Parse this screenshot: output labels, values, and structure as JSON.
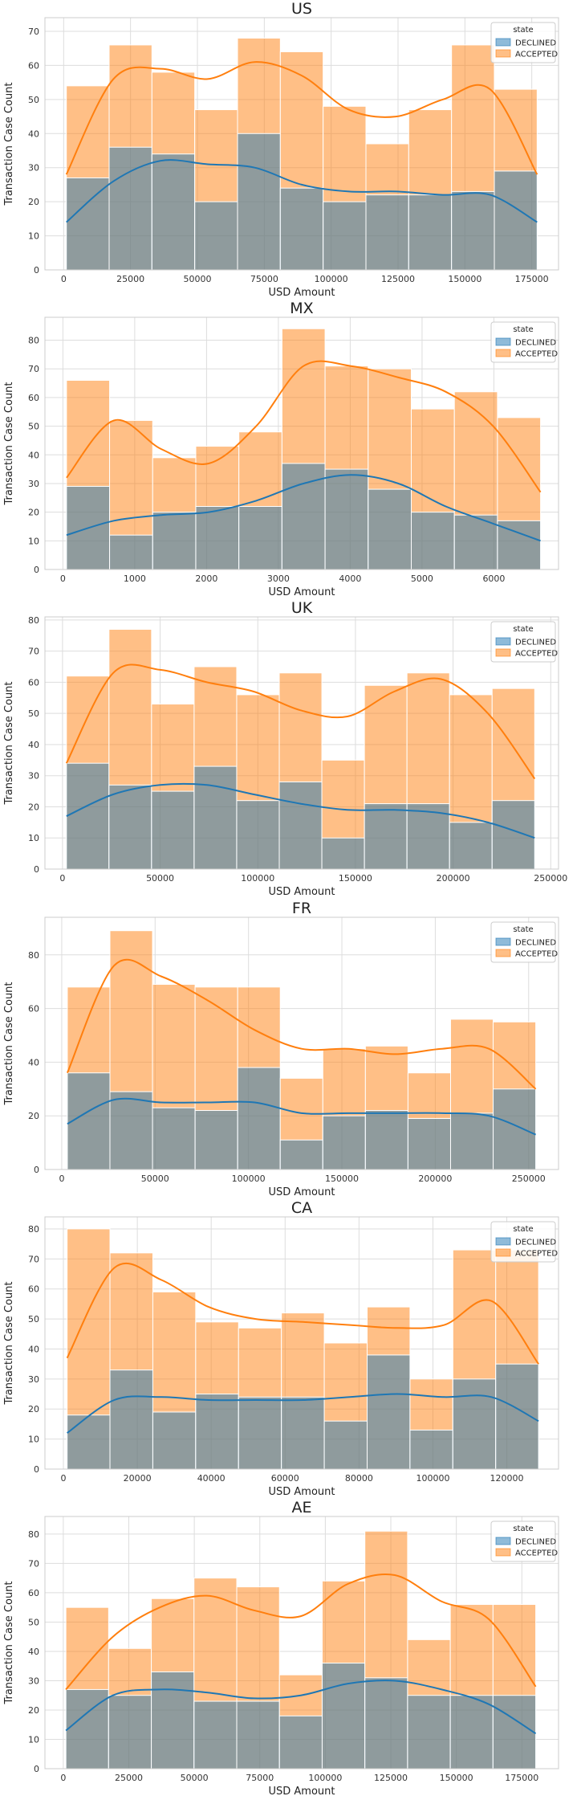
{
  "chart_data": [
    {
      "type": "bar",
      "title": "US",
      "xlabel": "USD Amount",
      "ylabel": "Transaction Case Count",
      "legend": {
        "title": "state",
        "placement": "top-right",
        "entries": [
          "DECLINED",
          "ACCEPTED"
        ]
      },
      "grid": true,
      "stacked": false,
      "xlim": [
        -7000,
        185000
      ],
      "ylim": [
        0,
        74
      ],
      "xticks": [
        0,
        25000,
        50000,
        75000,
        100000,
        125000,
        150000,
        175000
      ],
      "xtick_labels": [
        "0",
        "25000",
        "50000",
        "75000",
        "100000",
        "125000",
        "150000",
        "175000"
      ],
      "yticks": [
        0,
        10,
        20,
        30,
        40,
        50,
        60,
        70
      ],
      "bin_edges": [
        1000,
        17000,
        33000,
        49000,
        65000,
        81000,
        97000,
        113000,
        129000,
        145000,
        161000,
        177000
      ],
      "series": [
        {
          "name": "DECLINED",
          "color": "#1f77b4",
          "values": [
            27,
            36,
            34,
            20,
            40,
            24,
            20,
            22,
            22,
            23,
            29
          ],
          "kde_y": [
            14,
            26,
            32,
            31,
            30,
            25,
            23,
            23,
            22,
            22,
            14
          ]
        },
        {
          "name": "ACCEPTED",
          "color": "#ff7f0e",
          "values": [
            54,
            66,
            58,
            47,
            68,
            64,
            48,
            37,
            47,
            66,
            53
          ],
          "kde_y": [
            28,
            56,
            59,
            56,
            61,
            57,
            47,
            45,
            50,
            53,
            28
          ]
        }
      ]
    },
    {
      "type": "bar",
      "title": "MX",
      "xlabel": "USD Amount",
      "ylabel": "Transaction Case Count",
      "legend": {
        "title": "state",
        "placement": "top-right",
        "entries": [
          "DECLINED",
          "ACCEPTED"
        ]
      },
      "grid": true,
      "stacked": false,
      "xlim": [
        -250,
        6900
      ],
      "ylim": [
        0,
        88
      ],
      "xticks": [
        0,
        1000,
        2000,
        3000,
        4000,
        5000,
        6000
      ],
      "xtick_labels": [
        "0",
        "1000",
        "2000",
        "3000",
        "4000",
        "5000",
        "6000"
      ],
      "yticks": [
        0,
        10,
        20,
        30,
        40,
        50,
        60,
        70,
        80
      ],
      "bin_edges": [
        50,
        650,
        1250,
        1850,
        2450,
        3050,
        3650,
        4250,
        4850,
        5450,
        6050,
        6650
      ],
      "series": [
        {
          "name": "DECLINED",
          "color": "#1f77b4",
          "values": [
            29,
            12,
            20,
            22,
            22,
            37,
            35,
            28,
            20,
            19,
            17
          ],
          "kde_y": [
            12,
            17,
            19,
            20,
            24,
            30,
            33,
            30,
            22,
            16,
            10
          ]
        },
        {
          "name": "ACCEPTED",
          "color": "#ff7f0e",
          "values": [
            66,
            52,
            39,
            43,
            48,
            84,
            71,
            70,
            56,
            62,
            53
          ],
          "kde_y": [
            32,
            52,
            42,
            37,
            50,
            71,
            71,
            67,
            62,
            50,
            27
          ]
        }
      ]
    },
    {
      "type": "bar",
      "title": "UK",
      "xlabel": "USD Amount",
      "ylabel": "Transaction Case Count",
      "legend": {
        "title": "state",
        "placement": "top-right",
        "entries": [
          "DECLINED",
          "ACCEPTED"
        ]
      },
      "grid": true,
      "stacked": false,
      "xlim": [
        -9000,
        254000
      ],
      "ylim": [
        0,
        81
      ],
      "xticks": [
        0,
        50000,
        100000,
        150000,
        200000,
        250000
      ],
      "xtick_labels": [
        "0",
        "50000",
        "100000",
        "150000",
        "200000",
        "250000"
      ],
      "yticks": [
        0,
        10,
        20,
        30,
        40,
        50,
        60,
        70,
        80
      ],
      "bin_edges": [
        2000,
        23800,
        45600,
        67400,
        89200,
        111000,
        132800,
        154600,
        176400,
        198200,
        220000,
        241800
      ],
      "series": [
        {
          "name": "DECLINED",
          "color": "#1f77b4",
          "values": [
            34,
            27,
            25,
            33,
            22,
            28,
            10,
            21,
            21,
            15,
            22
          ],
          "kde_y": [
            17,
            24,
            27,
            27,
            24,
            21,
            19,
            19,
            18,
            15,
            10
          ]
        },
        {
          "name": "ACCEPTED",
          "color": "#ff7f0e",
          "values": [
            62,
            77,
            53,
            65,
            56,
            63,
            35,
            59,
            63,
            56,
            58
          ],
          "kde_y": [
            34,
            63,
            64,
            60,
            57,
            51,
            49,
            57,
            61,
            50,
            29
          ]
        }
      ]
    },
    {
      "type": "bar",
      "title": "FR",
      "xlabel": "USD Amount",
      "ylabel": "Transaction Case Count",
      "legend": {
        "title": "state",
        "placement": "top-right",
        "entries": [
          "DECLINED",
          "ACCEPTED"
        ]
      },
      "grid": true,
      "stacked": false,
      "xlim": [
        -9000,
        266000
      ],
      "ylim": [
        0,
        94
      ],
      "xticks": [
        0,
        50000,
        100000,
        150000,
        200000,
        250000
      ],
      "xtick_labels": [
        "0",
        "50000",
        "100000",
        "150000",
        "200000",
        "250000"
      ],
      "yticks": [
        0,
        20,
        40,
        60,
        80
      ],
      "bin_edges": [
        3000,
        25800,
        48600,
        71400,
        94200,
        117000,
        139800,
        162600,
        185400,
        208200,
        231000,
        253800
      ],
      "series": [
        {
          "name": "DECLINED",
          "color": "#1f77b4",
          "values": [
            36,
            29,
            23,
            22,
            38,
            11,
            20,
            22,
            19,
            21,
            30
          ],
          "kde_y": [
            17,
            26,
            25,
            25,
            25,
            21,
            21,
            21,
            21,
            20,
            13
          ]
        },
        {
          "name": "ACCEPTED",
          "color": "#ff7f0e",
          "values": [
            68,
            89,
            69,
            68,
            68,
            34,
            45,
            46,
            36,
            56,
            55
          ],
          "kde_y": [
            36,
            76,
            72,
            63,
            52,
            45,
            45,
            43,
            45,
            45,
            30
          ]
        }
      ]
    },
    {
      "type": "bar",
      "title": "CA",
      "xlabel": "USD Amount",
      "ylabel": "Transaction Case Count",
      "legend": {
        "title": "state",
        "placement": "top-right",
        "entries": [
          "DECLINED",
          "ACCEPTED"
        ]
      },
      "grid": true,
      "stacked": false,
      "xlim": [
        -5000,
        134000
      ],
      "ylim": [
        0,
        84
      ],
      "xticks": [
        0,
        20000,
        40000,
        60000,
        80000,
        100000,
        120000
      ],
      "xtick_labels": [
        "0",
        "20000",
        "40000",
        "60000",
        "80000",
        "100000",
        "120000"
      ],
      "yticks": [
        0,
        10,
        20,
        30,
        40,
        50,
        60,
        70,
        80
      ],
      "bin_edges": [
        1000,
        12600,
        24200,
        35800,
        47400,
        59000,
        70600,
        82200,
        93800,
        105400,
        117000,
        128600
      ],
      "series": [
        {
          "name": "DECLINED",
          "color": "#1f77b4",
          "values": [
            18,
            33,
            19,
            25,
            24,
            24,
            16,
            38,
            13,
            30,
            35
          ],
          "kde_y": [
            12,
            23,
            24,
            23,
            23,
            23,
            24,
            25,
            24,
            24,
            16
          ]
        },
        {
          "name": "ACCEPTED",
          "color": "#ff7f0e",
          "values": [
            80,
            72,
            59,
            49,
            47,
            52,
            42,
            54,
            30,
            73,
            73
          ],
          "kde_y": [
            37,
            67,
            63,
            54,
            50,
            49,
            48,
            47,
            48,
            56,
            35
          ]
        }
      ]
    },
    {
      "type": "bar",
      "title": "AE",
      "xlabel": "USD Amount",
      "ylabel": "Transaction Case Count",
      "legend": {
        "title": "state",
        "placement": "top-right",
        "entries": [
          "DECLINED",
          "ACCEPTED"
        ]
      },
      "grid": true,
      "stacked": false,
      "xlim": [
        -7000,
        189000
      ],
      "ylim": [
        0,
        86
      ],
      "xticks": [
        0,
        25000,
        50000,
        75000,
        100000,
        125000,
        150000,
        175000
      ],
      "xtick_labels": [
        "0",
        "25000",
        "50000",
        "75000",
        "100000",
        "125000",
        "150000",
        "175000"
      ],
      "yticks": [
        0,
        10,
        20,
        30,
        40,
        50,
        60,
        70,
        80
      ],
      "bin_edges": [
        1000,
        17300,
        33600,
        49900,
        66200,
        82500,
        98800,
        115100,
        131400,
        147700,
        164000,
        180300
      ],
      "series": [
        {
          "name": "DECLINED",
          "color": "#1f77b4",
          "values": [
            27,
            25,
            33,
            23,
            23,
            18,
            36,
            31,
            25,
            25,
            25
          ],
          "kde_y": [
            13,
            25,
            27,
            26,
            24,
            25,
            29,
            30,
            27,
            22,
            12
          ]
        },
        {
          "name": "ACCEPTED",
          "color": "#ff7f0e",
          "values": [
            55,
            41,
            58,
            65,
            62,
            32,
            64,
            81,
            44,
            56,
            56
          ],
          "kde_y": [
            27,
            45,
            55,
            59,
            54,
            52,
            63,
            66,
            57,
            51,
            28
          ]
        }
      ]
    }
  ]
}
